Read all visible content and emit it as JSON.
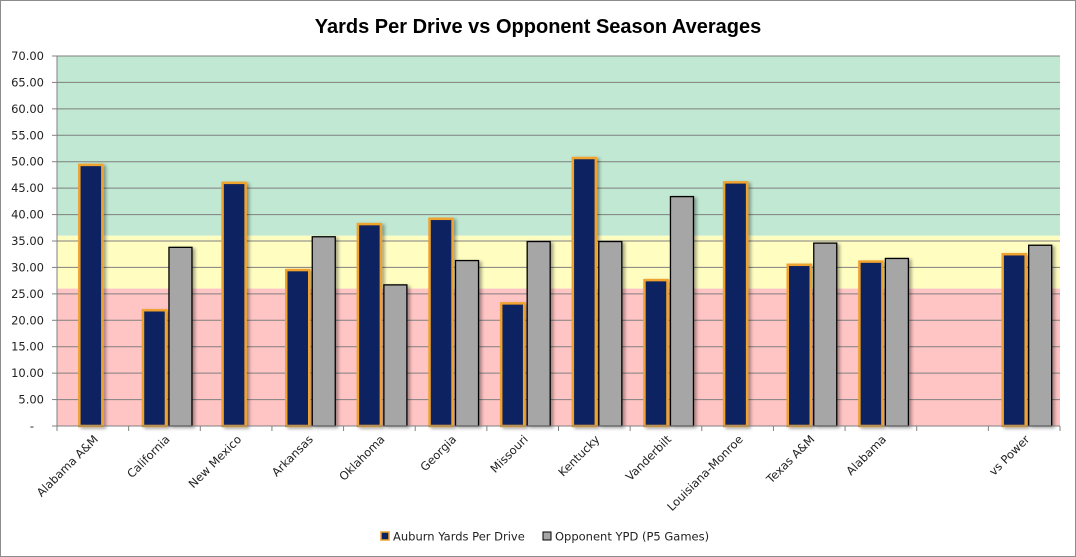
{
  "chart_data": {
    "type": "bar",
    "title": "Yards Per Drive vs Opponent Season Averages",
    "xlabel": "",
    "ylabel": "",
    "ylim": [
      0,
      70
    ],
    "y_ticks": [
      "-",
      "5.00",
      "10.00",
      "15.00",
      "20.00",
      "25.00",
      "30.00",
      "35.00",
      "40.00",
      "45.00",
      "50.00",
      "55.00",
      "60.00",
      "65.00",
      "70.00"
    ],
    "grid": true,
    "legend_position": "bottom",
    "categories": [
      "Alabama A&M",
      "California",
      "New Mexico",
      "Arkansas",
      "Oklahoma",
      "Georgia",
      "Missouri",
      "Kentucky",
      "Vanderbilt",
      "Louisiana-Monroe",
      "Texas A&M",
      "Alabama",
      "",
      "vs Power"
    ],
    "series": [
      {
        "name": "Auburn Yards Per Drive",
        "color": "#0c2360",
        "border": "#f0a22e",
        "values": [
          49.4,
          21.9,
          46.0,
          29.5,
          38.2,
          39.2,
          23.2,
          50.7,
          27.6,
          46.1,
          30.5,
          31.1,
          null,
          32.5
        ]
      },
      {
        "name": "Opponent YPD (P5 Games)",
        "color": "#a6a6a6",
        "border": "#000000",
        "values": [
          null,
          33.8,
          null,
          35.8,
          26.7,
          31.3,
          34.9,
          34.9,
          43.4,
          null,
          34.6,
          31.7,
          null,
          34.2
        ]
      }
    ],
    "bands": [
      {
        "name": "green",
        "from": 36,
        "to": 70,
        "color": "#c0e8d2"
      },
      {
        "name": "yellow",
        "from": 26,
        "to": 36,
        "color": "#fffdc0"
      },
      {
        "name": "red",
        "from": 0,
        "to": 26,
        "color": "#ffc4c4"
      }
    ]
  }
}
